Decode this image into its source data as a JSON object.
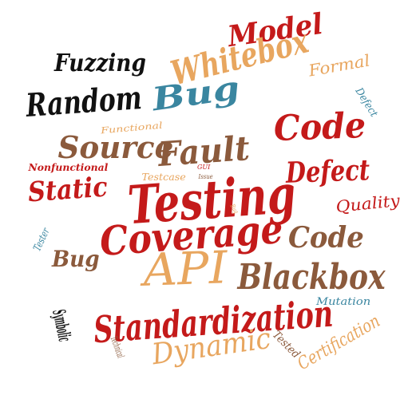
{
  "word_cloud": {
    "words": [
      {
        "text": "Model",
        "color": "#c41a1a"
      },
      {
        "text": "Whitebox",
        "color": "#e8a65f"
      },
      {
        "text": "Fuzzing",
        "color": "#111111"
      },
      {
        "text": "Formal",
        "color": "#e8a65f"
      },
      {
        "text": "Random",
        "color": "#111111"
      },
      {
        "text": "Bug",
        "color": "#3a86a0"
      },
      {
        "text": "Defect",
        "color": "#3a86a0"
      },
      {
        "text": "Functional",
        "color": "#e8a65f"
      },
      {
        "text": "Code",
        "color": "#c41a1a"
      },
      {
        "text": "Source",
        "color": "#8b5a3c"
      },
      {
        "text": "Fault",
        "color": "#8b5a3c"
      },
      {
        "text": "Nonfunctional",
        "color": "#c41a1a"
      },
      {
        "text": "Testcase",
        "color": "#e8a65f"
      },
      {
        "text": "GUI",
        "color": "#c41a1a"
      },
      {
        "text": "Issue",
        "color": "#8b5a3c"
      },
      {
        "text": "Defect",
        "color": "#c41a1a"
      },
      {
        "text": "Static",
        "color": "#c41a1a"
      },
      {
        "text": "Testing",
        "color": "#c41a1a"
      },
      {
        "text": "Bug",
        "color": "#e8a65f"
      },
      {
        "text": "Quality",
        "color": "#c41a1a"
      },
      {
        "text": "Tester",
        "color": "#3a86a0"
      },
      {
        "text": "Coverage",
        "color": "#c41a1a"
      },
      {
        "text": "Code",
        "color": "#8b5a3c"
      },
      {
        "text": "Bug",
        "color": "#8b5a3c"
      },
      {
        "text": "API",
        "color": "#e8a65f"
      },
      {
        "text": "Blackbox",
        "color": "#8b5a3c"
      },
      {
        "text": "Symbolic",
        "color": "#111111"
      },
      {
        "text": "Mutation",
        "color": "#3a86a0"
      },
      {
        "text": "Standardization",
        "color": "#c41a1a"
      },
      {
        "text": "Technical",
        "color": "#8b5a3c"
      },
      {
        "text": "Dynamic",
        "color": "#e8a65f"
      },
      {
        "text": "Tested",
        "color": "#8b5a3c"
      },
      {
        "text": "Certification",
        "color": "#e8a65f"
      }
    ]
  }
}
